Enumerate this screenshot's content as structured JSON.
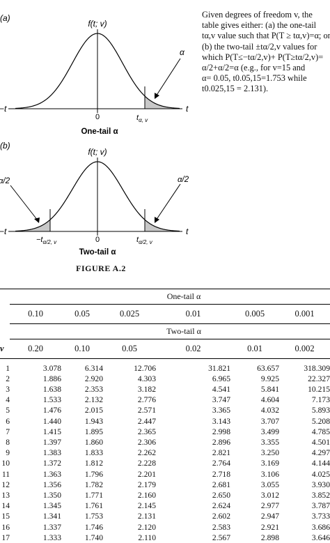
{
  "panel_a": {
    "label": "(a)",
    "y_axis_label": "f(t; v)",
    "left_tick": "−t",
    "right_tick": "t",
    "zero_label": "0",
    "crit_label": "t",
    "crit_sub": "α, v",
    "alpha_label": "α",
    "caption": "One-tail α"
  },
  "panel_b": {
    "label": "(b)",
    "y_axis_label": "f(t; v)",
    "left_tick": "−t",
    "right_tick": "t",
    "zero_label": "0",
    "neg_crit_label": "−t",
    "neg_crit_sub": "α/2, v",
    "pos_crit_label": "t",
    "pos_crit_sub": "α/2, v",
    "left_alpha_label": "α/2",
    "right_alpha_label": "α/2",
    "caption": "Two-tail α"
  },
  "figure_caption": "FIGURE A.2",
  "description_lines": [
    "Given degrees of freedom v, the",
    "table gives either: (a) the one-tail",
    "tα,v value such that P(T ≥ tα,v)=α; or",
    "(b) the two-tail ±tα/2,v values for",
    "which P(T≤−tα/2,v)+ P(T≥tα/2,v)=",
    "α/2+α/2=α (e.g., for v=15 and",
    "α= 0.05, t0.05,15=1.753 while",
    "t0.025,15 = 2.131)."
  ],
  "table": {
    "one_tail_heading": "One-tail α",
    "two_tail_heading": "Two-tail α",
    "nu_heading": "v",
    "one_tail_alphas": [
      "0.10",
      "0.05",
      "0.025",
      "0.01",
      "0.005",
      "0.001"
    ],
    "two_tail_alphas": [
      "0.20",
      "0.10",
      "0.05",
      "0.02",
      "0.01",
      "0.002"
    ],
    "rows": [
      {
        "nu": "1",
        "vals": [
          "3.078",
          "6.314",
          "12.706",
          "31.821",
          "63.657",
          "318.309"
        ]
      },
      {
        "nu": "2",
        "vals": [
          "1.886",
          "2.920",
          "4.303",
          "6.965",
          "9.925",
          "22.327"
        ]
      },
      {
        "nu": "3",
        "vals": [
          "1.638",
          "2.353",
          "3.182",
          "4.541",
          "5.841",
          "10.215"
        ]
      },
      {
        "nu": "4",
        "vals": [
          "1.533",
          "2.132",
          "2.776",
          "3.747",
          "4.604",
          "7.173"
        ]
      },
      {
        "nu": "5",
        "vals": [
          "1.476",
          "2.015",
          "2.571",
          "3.365",
          "4.032",
          "5.893"
        ]
      },
      {
        "nu": "6",
        "vals": [
          "1.440",
          "1.943",
          "2.447",
          "3.143",
          "3.707",
          "5.208"
        ]
      },
      {
        "nu": "7",
        "vals": [
          "1.415",
          "1.895",
          "2.365",
          "2.998",
          "3.499",
          "4.785"
        ]
      },
      {
        "nu": "8",
        "vals": [
          "1.397",
          "1.860",
          "2.306",
          "2.896",
          "3.355",
          "4.501"
        ]
      },
      {
        "nu": "9",
        "vals": [
          "1.383",
          "1.833",
          "2.262",
          "2.821",
          "3.250",
          "4.297"
        ]
      },
      {
        "nu": "10",
        "vals": [
          "1.372",
          "1.812",
          "2.228",
          "2.764",
          "3.169",
          "4.144"
        ]
      },
      {
        "nu": "11",
        "vals": [
          "1.363",
          "1.796",
          "2.201",
          "2.718",
          "3.106",
          "4.025"
        ]
      },
      {
        "nu": "12",
        "vals": [
          "1.356",
          "1.782",
          "2.179",
          "2.681",
          "3.055",
          "3.930"
        ]
      },
      {
        "nu": "13",
        "vals": [
          "1.350",
          "1.771",
          "2.160",
          "2.650",
          "3.012",
          "3.852"
        ]
      },
      {
        "nu": "14",
        "vals": [
          "1.345",
          "1.761",
          "2.145",
          "2.624",
          "2.977",
          "3.787"
        ]
      },
      {
        "nu": "15",
        "vals": [
          "1.341",
          "1.753",
          "2.131",
          "2.602",
          "2.947",
          "3.733"
        ]
      },
      {
        "nu": "16",
        "vals": [
          "1.337",
          "1.746",
          "2.120",
          "2.583",
          "2.921",
          "3.686"
        ]
      },
      {
        "nu": "17",
        "vals": [
          "1.333",
          "1.740",
          "2.110",
          "2.567",
          "2.898",
          "3.646"
        ]
      }
    ]
  }
}
